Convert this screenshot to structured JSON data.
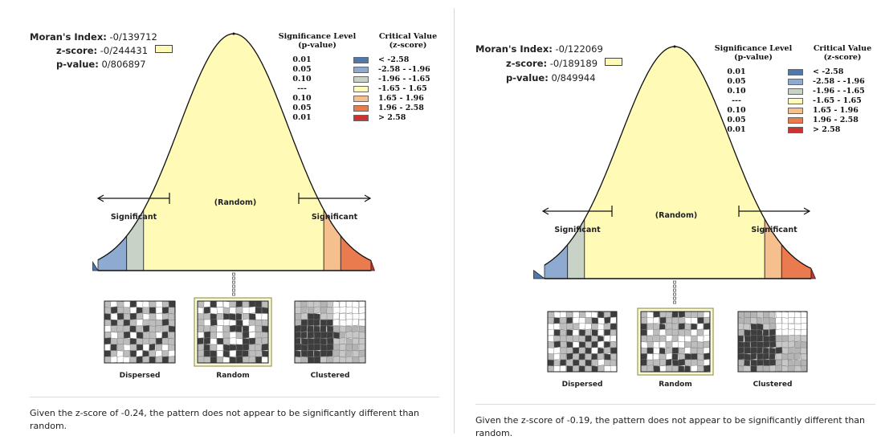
{
  "left": {
    "morans_index": {
      "label": "Moran's Index:",
      "value": "-0/139712"
    },
    "z_score": {
      "label": "z-score:",
      "value": "-0/244431"
    },
    "p_value": {
      "label": "p-value:",
      "value": "0/806897"
    },
    "legend": {
      "sig_header": [
        "Significance Level",
        "(p-value)"
      ],
      "crit_header": [
        "Critical Value",
        "(z-score)"
      ],
      "rows": [
        {
          "p": "0.01",
          "range": "< -2.58",
          "color": "#4f78b0"
        },
        {
          "p": "0.05",
          "range": "-2.58 - -1.96",
          "color": "#8eaad0"
        },
        {
          "p": "0.10",
          "range": "-1.96 - -1.65",
          "color": "#c9d2c6"
        },
        {
          "p": "---",
          "range": "-1.65 - 1.65",
          "color": "#fffbb6"
        },
        {
          "p": "0.10",
          "range": "1.65 - 1.96",
          "color": "#f5bf8e"
        },
        {
          "p": "0.05",
          "range": "1.96 - 2.58",
          "color": "#ea7b4e"
        },
        {
          "p": "0.01",
          "range": "> 2.58",
          "color": "#cc3330"
        }
      ]
    },
    "curve": {
      "random": "(Random)",
      "sig_left": "Significant",
      "sig_right": "Significant"
    },
    "maps": {
      "dispersed": "Dispersed",
      "random": "Random",
      "clustered": "Clustered"
    },
    "conclusion": "Given the z-score of -0.24, the pattern does not appear to be significantly different than random."
  },
  "right": {
    "morans_index": {
      "label": "Moran's Index:",
      "value": "-0/122069"
    },
    "z_score": {
      "label": "z-score:",
      "value": "-0/189189"
    },
    "p_value": {
      "label": "p-value:",
      "value": "0/849944"
    },
    "legend": {
      "sig_header": [
        "Significance Level",
        "(p-value)"
      ],
      "crit_header": [
        "Critical Value",
        "(z-score)"
      ],
      "rows": [
        {
          "p": "0.01",
          "range": "< -2.58",
          "color": "#4f78b0"
        },
        {
          "p": "0.05",
          "range": "-2.58 - -1.96",
          "color": "#8eaad0"
        },
        {
          "p": "0.10",
          "range": "-1.96 - -1.65",
          "color": "#c9d2c6"
        },
        {
          "p": "---",
          "range": "-1.65 - 1.65",
          "color": "#fffbb6"
        },
        {
          "p": "0.10",
          "range": "1.65 - 1.96",
          "color": "#f5bf8e"
        },
        {
          "p": "0.05",
          "range": "1.96 - 2.58",
          "color": "#ea7b4e"
        },
        {
          "p": "0.01",
          "range": "> 2.58",
          "color": "#cc3330"
        }
      ]
    },
    "curve": {
      "random": "(Random)",
      "sig_left": "Significant",
      "sig_right": "Significant"
    },
    "maps": {
      "dispersed": "Dispersed",
      "random": "Random",
      "clustered": "Clustered"
    },
    "conclusion": "Given the z-score of -0.19, the pattern does not appear to be significantly different than random."
  }
}
